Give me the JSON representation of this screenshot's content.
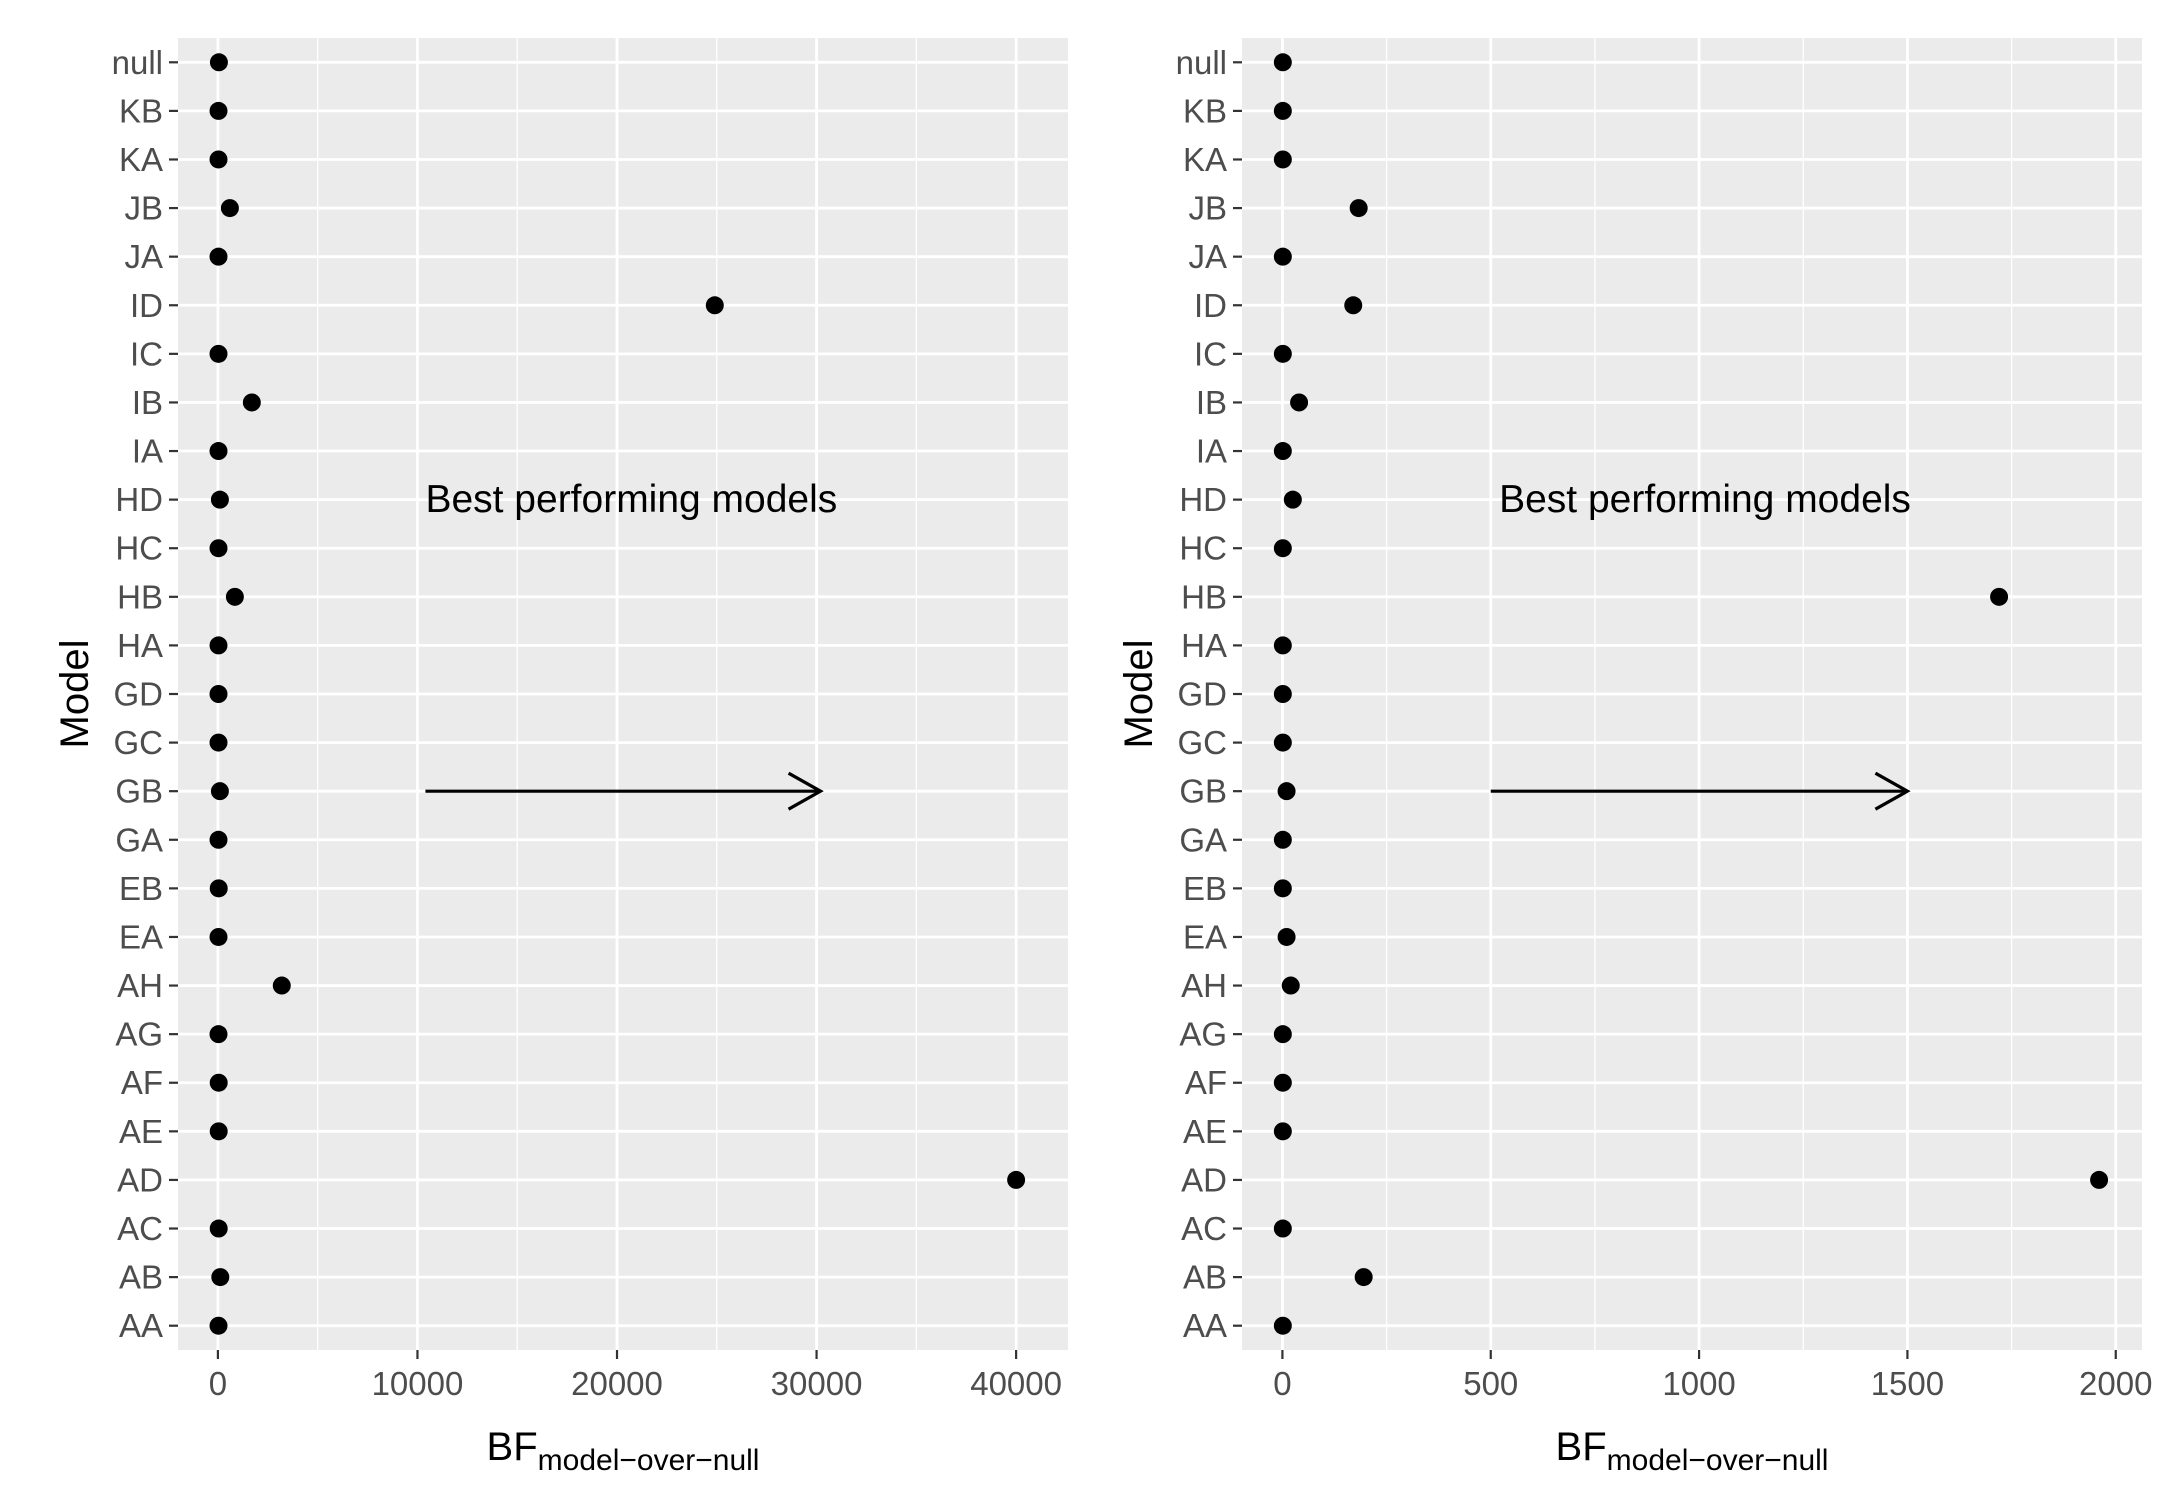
{
  "chart_data": [
    {
      "type": "scatter",
      "ylabel": "Model",
      "xlabel_main": "BF",
      "xlabel_sub": "model−over−null",
      "categories": [
        "AA",
        "AB",
        "AC",
        "AD",
        "AE",
        "AF",
        "AG",
        "AH",
        "EA",
        "EB",
        "GA",
        "GB",
        "GC",
        "GD",
        "HA",
        "HB",
        "HC",
        "HD",
        "IA",
        "IB",
        "IC",
        "ID",
        "JA",
        "JB",
        "KA",
        "KB",
        "null"
      ],
      "values": [
        30,
        120,
        40,
        40000,
        40,
        40,
        30,
        3200,
        30,
        40,
        30,
        100,
        30,
        30,
        30,
        850,
        30,
        100,
        30,
        1700,
        30,
        24900,
        30,
        600,
        30,
        30,
        50
      ],
      "xticks": [
        0,
        10000,
        20000,
        30000,
        40000
      ],
      "xtick_labels": [
        "0",
        "10000",
        "20000",
        "30000",
        "40000"
      ],
      "xlim": [
        -2000,
        42600
      ],
      "annotation": {
        "text": "Best performing models",
        "at": {
          "x": 10400,
          "category": "HD"
        }
      },
      "arrow": {
        "from": {
          "x": 10400,
          "category": "GB"
        },
        "to": {
          "x": 30200,
          "category": "GB"
        }
      },
      "grid": true
    },
    {
      "type": "scatter",
      "ylabel": "Model",
      "xlabel_main": "BF",
      "xlabel_sub": "model−over−null",
      "categories": [
        "AA",
        "AB",
        "AC",
        "AD",
        "AE",
        "AF",
        "AG",
        "AH",
        "EA",
        "EB",
        "GA",
        "GB",
        "GC",
        "GD",
        "HA",
        "HB",
        "HC",
        "HD",
        "IA",
        "IB",
        "IC",
        "ID",
        "JA",
        "JB",
        "KA",
        "KB",
        "null"
      ],
      "values": [
        1,
        195,
        1,
        1960,
        1,
        1,
        1,
        20,
        10,
        1,
        1,
        10,
        1,
        1,
        1,
        1720,
        1,
        25,
        1,
        40,
        1,
        170,
        1,
        183,
        1,
        1,
        1
      ],
      "xticks": [
        0,
        500,
        1000,
        1500,
        2000
      ],
      "xtick_labels": [
        "0",
        "500",
        "1000",
        "1500",
        "2000"
      ],
      "xlim": [
        -97,
        2063
      ],
      "annotation": {
        "text": "Best performing models",
        "at": {
          "x": 520,
          "category": "HD"
        }
      },
      "arrow": {
        "from": {
          "x": 500,
          "category": "GB"
        },
        "to": {
          "x": 1500,
          "category": "GB"
        }
      },
      "grid": true
    }
  ]
}
